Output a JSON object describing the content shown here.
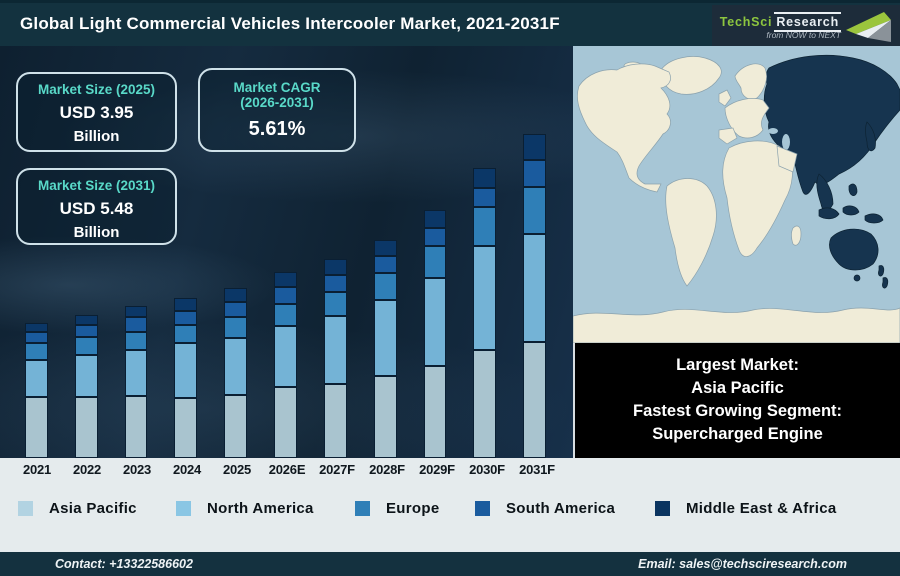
{
  "header": {
    "title": "Global Light Commercial Vehicles Intercooler Market, 2021-2031F",
    "logo": {
      "brand": "TechSci",
      "brand2": "Research",
      "tagline": "from NOW to NEXT"
    }
  },
  "stat_boxes": [
    {
      "title": "Market Size (2025)",
      "value": "USD 3.95",
      "unit": "Billion"
    },
    {
      "title": "Market CAGR",
      "subtitle": "(2026-2031)",
      "value": "5.61%"
    },
    {
      "title": "Market Size (2031)",
      "value": "USD 5.48",
      "unit": "Billion"
    }
  ],
  "callout": {
    "lines": [
      "Largest Market:",
      "Asia Pacific",
      "Fastest Growing Segment:",
      "Supercharged Engine"
    ]
  },
  "map": {
    "highlight_region": "Asia Pacific",
    "ocean_color": "#a7c6d6",
    "land_color": "#f0ecd8",
    "highlight_color": "#16344f",
    "border_color": "#8ba2ad"
  },
  "chart_data": {
    "type": "bar",
    "stacked": true,
    "title": "Global Light Commercial Vehicles Intercooler Market, 2021-2031F",
    "categories": [
      "2021",
      "2022",
      "2023",
      "2024",
      "2025",
      "2026E",
      "2027F",
      "2028F",
      "2029F",
      "2030F",
      "2031F"
    ],
    "value_axis": "none shown — illustrative stacked heights (relative px units)",
    "legend_position": "bottom",
    "series": [
      {
        "name": "Asia Pacific",
        "color": "#a9c4cf",
        "legend_color": "#b2d3e2",
        "values": [
          61,
          61,
          62,
          60,
          63,
          71,
          74,
          82,
          92,
          108,
          116
        ]
      },
      {
        "name": "North America",
        "color": "#74b3d6",
        "legend_color": "#8ac6e4",
        "values": [
          37,
          42,
          46,
          55,
          57,
          61,
          68,
          76,
          88,
          104,
          108
        ]
      },
      {
        "name": "Europe",
        "color": "#2f7fb7",
        "legend_color": "#2f7fb7",
        "values": [
          17,
          18,
          18,
          18,
          21,
          22,
          24,
          27,
          32,
          39,
          47
        ]
      },
      {
        "name": "South America",
        "color": "#1a5b9e",
        "legend_color": "#1a5b9e",
        "values": [
          11,
          12,
          15,
          14,
          15,
          17,
          17,
          17,
          18,
          19,
          27
        ]
      },
      {
        "name": "Middle East & Africa",
        "color": "#0b3767",
        "legend_color": "#0a3460",
        "values": [
          9,
          10,
          11,
          13,
          14,
          15,
          16,
          16,
          18,
          20,
          26
        ]
      }
    ],
    "annotations": {
      "market_size_2025_usd_billion": 3.95,
      "market_size_2031_usd_billion": 5.48,
      "cagr_2026_2031_percent": 5.61,
      "largest_market": "Asia Pacific",
      "fastest_growing_segment": "Supercharged Engine"
    }
  },
  "footer": {
    "contact": "Contact: +13322586602",
    "email": "Email: sales@techsciresearch.com"
  },
  "colors": {
    "header_bg": "#13323f",
    "chart_bg": "#13263a",
    "light_strip_bg": "#e5ebed",
    "footer_bg": "#14313f",
    "stat_title_color": "#59d9c8",
    "logo_green": "#8dc63f"
  }
}
